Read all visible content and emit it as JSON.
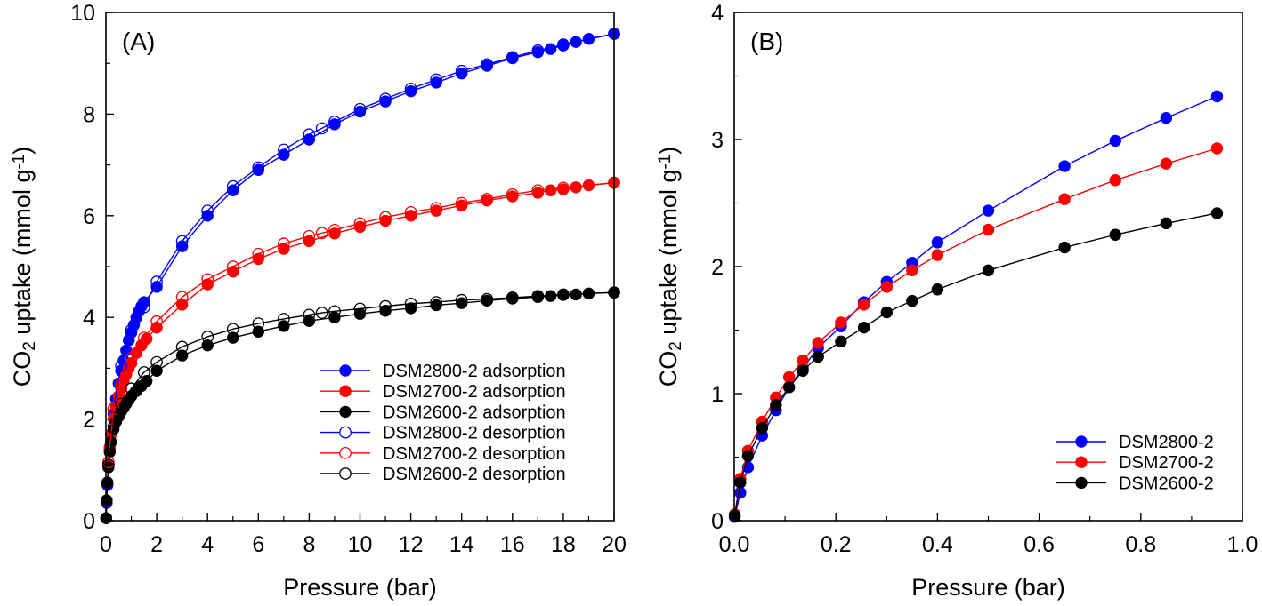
{
  "chart_data": [
    {
      "type": "scatter",
      "panel_label": "(A)",
      "xlabel": "Pressure (bar)",
      "ylabel": {
        "prefix": "CO",
        "sub": "2",
        "middle": " uptake (mmol g",
        "sup": "-1",
        "suffix": ")"
      },
      "xlim": [
        0,
        20
      ],
      "ylim": [
        0,
        10
      ],
      "xticks": [
        0,
        2,
        4,
        6,
        8,
        10,
        12,
        14,
        16,
        18,
        20
      ],
      "yticks": [
        0,
        2,
        4,
        6,
        8,
        10
      ],
      "grid": false,
      "legend_position": "bottom-right",
      "series": [
        {
          "name": "DSM2800-2 adsorption",
          "color": "#0000ff",
          "marker": "filled-circle",
          "line": true,
          "x": [
            0.01,
            0.03,
            0.06,
            0.1,
            0.15,
            0.2,
            0.3,
            0.4,
            0.5,
            0.6,
            0.7,
            0.8,
            0.9,
            1.0,
            1.1,
            1.2,
            1.3,
            1.4,
            1.5,
            2,
            3,
            4,
            5,
            6,
            7,
            8,
            9,
            10,
            11,
            12,
            13,
            14,
            15,
            16,
            17,
            17.5,
            18,
            18.5,
            19,
            20
          ],
          "y": [
            0.05,
            0.35,
            0.7,
            1.05,
            1.4,
            1.7,
            2.1,
            2.4,
            2.7,
            2.95,
            3.15,
            3.35,
            3.55,
            3.7,
            3.85,
            4.0,
            4.12,
            4.22,
            4.3,
            4.6,
            5.4,
            6.0,
            6.5,
            6.9,
            7.2,
            7.5,
            7.8,
            8.05,
            8.25,
            8.45,
            8.62,
            8.8,
            8.95,
            9.1,
            9.22,
            9.28,
            9.35,
            9.42,
            9.48,
            9.58
          ]
        },
        {
          "name": "DSM2700-2 adsorption",
          "color": "#ff0000",
          "marker": "filled-circle",
          "line": true,
          "x": [
            0.01,
            0.03,
            0.06,
            0.1,
            0.15,
            0.2,
            0.3,
            0.4,
            0.5,
            0.6,
            0.7,
            0.8,
            0.9,
            1.0,
            1.2,
            1.4,
            1.6,
            2,
            3,
            4,
            5,
            6,
            7,
            8,
            9,
            10,
            11,
            12,
            13,
            14,
            15,
            16,
            17,
            17.5,
            18,
            18.5,
            19,
            20
          ],
          "y": [
            0.05,
            0.4,
            0.75,
            1.1,
            1.45,
            1.7,
            2.0,
            2.25,
            2.45,
            2.6,
            2.75,
            2.88,
            3.0,
            3.1,
            3.3,
            3.45,
            3.58,
            3.8,
            4.25,
            4.65,
            4.9,
            5.15,
            5.35,
            5.5,
            5.65,
            5.78,
            5.9,
            6.0,
            6.1,
            6.2,
            6.3,
            6.38,
            6.45,
            6.5,
            6.52,
            6.56,
            6.6,
            6.65
          ]
        },
        {
          "name": "DSM2600-2 adsorption",
          "color": "#000000",
          "marker": "filled-circle",
          "line": true,
          "x": [
            0.01,
            0.03,
            0.06,
            0.1,
            0.15,
            0.2,
            0.3,
            0.4,
            0.5,
            0.6,
            0.7,
            0.8,
            0.9,
            1.0,
            1.2,
            1.4,
            1.6,
            2,
            3,
            4,
            5,
            6,
            7,
            8,
            9,
            10,
            11,
            12,
            13,
            14,
            15,
            16,
            17,
            17.5,
            18,
            18.5,
            19,
            20
          ],
          "y": [
            0.05,
            0.4,
            0.75,
            1.05,
            1.35,
            1.55,
            1.8,
            1.95,
            2.05,
            2.15,
            2.22,
            2.3,
            2.38,
            2.45,
            2.55,
            2.65,
            2.75,
            2.95,
            3.25,
            3.45,
            3.6,
            3.72,
            3.83,
            3.93,
            4.0,
            4.07,
            4.13,
            4.18,
            4.24,
            4.28,
            4.33,
            4.37,
            4.4,
            4.42,
            4.44,
            4.45,
            4.47,
            4.49
          ]
        },
        {
          "name": "DSM2800-2 desorption",
          "color": "#0000ff",
          "marker": "open-circle",
          "line": true,
          "x": [
            20,
            18,
            17,
            16,
            15,
            14,
            13,
            12,
            11,
            10,
            9,
            8.5,
            8,
            7,
            6,
            5,
            4,
            3,
            2,
            1.5,
            1.0,
            0.6,
            0.3,
            0.1
          ],
          "y": [
            9.58,
            9.37,
            9.25,
            9.12,
            8.98,
            8.85,
            8.68,
            8.5,
            8.3,
            8.1,
            7.85,
            7.72,
            7.6,
            7.3,
            6.95,
            6.58,
            6.1,
            5.5,
            4.7,
            4.2,
            3.75,
            3.05,
            2.2,
            1.1
          ]
        },
        {
          "name": "DSM2700-2 desorption",
          "color": "#ff0000",
          "marker": "open-circle",
          "line": true,
          "x": [
            20,
            18,
            17,
            16,
            15,
            14,
            13,
            12,
            11,
            10,
            9,
            8.5,
            8,
            7,
            6,
            5,
            4,
            3,
            2,
            1.5,
            1.0,
            0.6,
            0.3,
            0.1
          ],
          "y": [
            6.65,
            6.55,
            6.5,
            6.42,
            6.33,
            6.25,
            6.15,
            6.07,
            5.97,
            5.85,
            5.72,
            5.66,
            5.6,
            5.45,
            5.25,
            5.0,
            4.75,
            4.4,
            3.92,
            3.6,
            3.2,
            2.7,
            2.2,
            1.15
          ]
        },
        {
          "name": "DSM2600-2 desorption",
          "color": "#000000",
          "marker": "open-circle",
          "line": true,
          "x": [
            20,
            18,
            17,
            16,
            15,
            14,
            13,
            12,
            11,
            10,
            9,
            8.5,
            8,
            7,
            6,
            5,
            4,
            3,
            2,
            1.5,
            1.0,
            0.6,
            0.3,
            0.1
          ],
          "y": [
            4.49,
            4.45,
            4.42,
            4.39,
            4.36,
            4.34,
            4.3,
            4.27,
            4.22,
            4.17,
            4.12,
            4.09,
            4.05,
            3.97,
            3.88,
            3.77,
            3.62,
            3.42,
            3.12,
            2.92,
            2.6,
            2.3,
            1.85,
            1.1
          ]
        }
      ]
    },
    {
      "type": "scatter",
      "panel_label": "(B)",
      "xlabel": "Pressure (bar)",
      "ylabel": {
        "prefix": "CO",
        "sub": "2",
        "middle": " uptake (mmol g",
        "sup": "-1",
        "suffix": ")"
      },
      "xlim": [
        0,
        1.0
      ],
      "ylim": [
        0,
        4
      ],
      "xticks": [
        0.0,
        0.2,
        0.4,
        0.6,
        0.8,
        1.0
      ],
      "xtick_labels": [
        "0.0",
        "0.2",
        "0.4",
        "0.6",
        "0.8",
        "1.0"
      ],
      "yticks": [
        0,
        1,
        2,
        3,
        4
      ],
      "grid": false,
      "legend_position": "bottom-right",
      "series": [
        {
          "name": "DSM2800-2",
          "color": "#0000ff",
          "marker": "filled-circle",
          "line": true,
          "x": [
            0.001,
            0.012,
            0.027,
            0.055,
            0.082,
            0.108,
            0.135,
            0.165,
            0.21,
            0.255,
            0.3,
            0.35,
            0.4,
            0.5,
            0.65,
            0.75,
            0.85,
            0.95
          ],
          "y": [
            0.03,
            0.22,
            0.42,
            0.67,
            0.87,
            1.05,
            1.2,
            1.36,
            1.53,
            1.72,
            1.88,
            2.03,
            2.19,
            2.44,
            2.79,
            2.99,
            3.17,
            3.34
          ]
        },
        {
          "name": "DSM2700-2",
          "color": "#ff0000",
          "marker": "filled-circle",
          "line": true,
          "x": [
            0.001,
            0.012,
            0.027,
            0.055,
            0.082,
            0.108,
            0.135,
            0.165,
            0.21,
            0.255,
            0.3,
            0.35,
            0.4,
            0.5,
            0.65,
            0.75,
            0.85,
            0.95
          ],
          "y": [
            0.05,
            0.33,
            0.55,
            0.78,
            0.97,
            1.13,
            1.26,
            1.4,
            1.56,
            1.7,
            1.84,
            1.97,
            2.09,
            2.29,
            2.53,
            2.68,
            2.81,
            2.93
          ]
        },
        {
          "name": "DSM2600-2",
          "color": "#000000",
          "marker": "filled-circle",
          "line": true,
          "x": [
            0.001,
            0.012,
            0.027,
            0.055,
            0.082,
            0.108,
            0.135,
            0.165,
            0.21,
            0.255,
            0.3,
            0.35,
            0.4,
            0.5,
            0.65,
            0.75,
            0.85,
            0.95
          ],
          "y": [
            0.04,
            0.3,
            0.51,
            0.73,
            0.91,
            1.05,
            1.18,
            1.29,
            1.41,
            1.52,
            1.64,
            1.73,
            1.82,
            1.97,
            2.15,
            2.25,
            2.34,
            2.42
          ]
        }
      ]
    }
  ]
}
